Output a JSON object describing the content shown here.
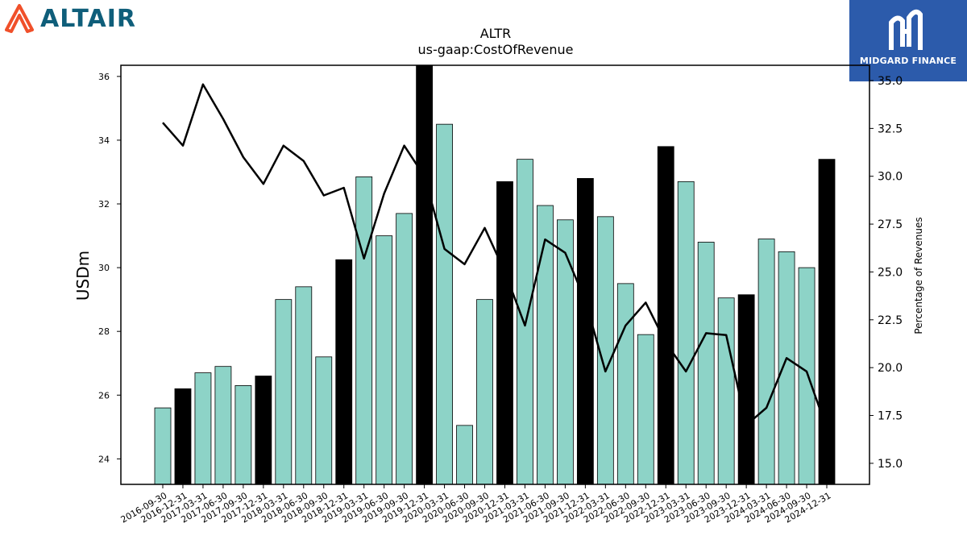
{
  "branding": {
    "left_logo_text": "ALTAIR",
    "right_logo_text": "MIDGARD FINANCE"
  },
  "colors": {
    "bar_quarter": "#8dd3c7",
    "bar_q4": "#000000",
    "line": "#000000"
  },
  "chart_data": {
    "type": "bar",
    "title": "ALTR",
    "subtitle": "us-gaap:CostOfRevenue",
    "ylabel": "USDm",
    "y2label": "Percentage of Revenues",
    "ylim": [
      23.2,
      36.35
    ],
    "y2lim": [
      13.9,
      35.8
    ],
    "yticks": [
      "24",
      "26",
      "28",
      "30",
      "32",
      "34",
      "36"
    ],
    "y2ticks": [
      "15.0",
      "17.5",
      "20.0",
      "22.5",
      "25.0",
      "27.5",
      "30.0",
      "32.5",
      "35.0"
    ],
    "categories": [
      "2016-09-30",
      "2016-12-31",
      "2017-03-31",
      "2017-06-30",
      "2017-09-30",
      "2017-12-31",
      "2018-03-31",
      "2018-06-30",
      "2018-09-30",
      "2018-12-31",
      "2019-03-31",
      "2019-06-30",
      "2019-09-30",
      "2019-12-31",
      "2020-03-31",
      "2020-06-30",
      "2020-09-30",
      "2020-12-31",
      "2021-03-31",
      "2021-06-30",
      "2021-09-30",
      "2021-12-31",
      "2022-03-31",
      "2022-06-30",
      "2022-09-30",
      "2022-12-31",
      "2023-03-31",
      "2023-06-30",
      "2023-09-30",
      "2023-12-31",
      "2024-03-31",
      "2024-06-30",
      "2024-09-30",
      "2024-12-31"
    ],
    "series": [
      {
        "kind": "bar",
        "values": [
          25.6,
          26.2,
          26.7,
          26.9,
          26.3,
          26.6,
          29.0,
          29.4,
          27.2,
          30.25,
          32.85,
          31.0,
          31.7,
          36.4,
          34.5,
          25.05,
          29.0,
          32.7,
          33.4,
          31.95,
          31.5,
          32.8,
          31.6,
          29.5,
          27.9,
          33.8,
          32.7,
          30.8,
          29.05,
          29.15,
          30.9,
          30.5,
          30.0,
          33.4
        ],
        "q4_highlight": [
          false,
          true,
          false,
          false,
          false,
          true,
          false,
          false,
          false,
          true,
          false,
          false,
          false,
          true,
          false,
          false,
          false,
          true,
          false,
          false,
          false,
          true,
          false,
          false,
          false,
          true,
          false,
          false,
          false,
          true,
          false,
          false,
          false,
          true
        ]
      },
      {
        "kind": "line",
        "axis": "right",
        "values": [
          32.8,
          31.6,
          34.8,
          33.0,
          31.0,
          29.6,
          31.6,
          30.8,
          29.0,
          29.4,
          25.7,
          29.1,
          31.6,
          30.0,
          26.2,
          25.4,
          27.3,
          25.0,
          22.2,
          26.7,
          26.0,
          23.5,
          19.8,
          22.2,
          23.4,
          21.3,
          19.8,
          21.8,
          21.7,
          17.0,
          17.9,
          20.5,
          19.8,
          16.8
        ]
      }
    ],
    "grid": false,
    "legend": "none"
  }
}
